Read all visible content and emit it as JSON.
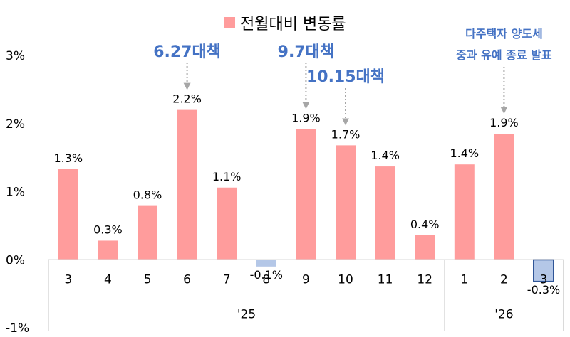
{
  "chart_data": {
    "type": "bar",
    "legend": "전월대비 변동률",
    "y_ticks": [
      "3%",
      "2%",
      "1%",
      "0%",
      "-1%"
    ],
    "ylim": [
      -1,
      3
    ],
    "series": [
      {
        "name": "전월대비 변동률",
        "color": "#FF9C9C",
        "negative_color": "#B4C7E7",
        "categories": [
          "3",
          "4",
          "5",
          "6",
          "7",
          "8",
          "9",
          "10",
          "11",
          "12",
          "1",
          "2",
          "3"
        ],
        "values": [
          1.33,
          0.28,
          0.79,
          2.2,
          1.06,
          -0.1,
          1.92,
          1.68,
          1.37,
          0.36,
          1.4,
          1.85,
          -0.32
        ],
        "labels": [
          "1.3%",
          "0.3%",
          "0.8%",
          "2.2%",
          "1.1%",
          "-0.1%",
          "1.9%",
          "1.7%",
          "1.4%",
          "0.4%",
          "1.4%",
          "1.9%",
          "-0.3%"
        ]
      }
    ],
    "year_groups": [
      {
        "label": "'25",
        "count": 10
      },
      {
        "label": "'26",
        "count": 3
      }
    ],
    "annotations": [
      {
        "text": "6.27대책",
        "bar_index": 3
      },
      {
        "text": "9.7대책",
        "bar_index": 6
      },
      {
        "text": "10.15대책",
        "bar_index": 7
      },
      {
        "text": "다주택자 양도세\n중과 유예 종료 발표",
        "bar_index": 11
      }
    ]
  }
}
